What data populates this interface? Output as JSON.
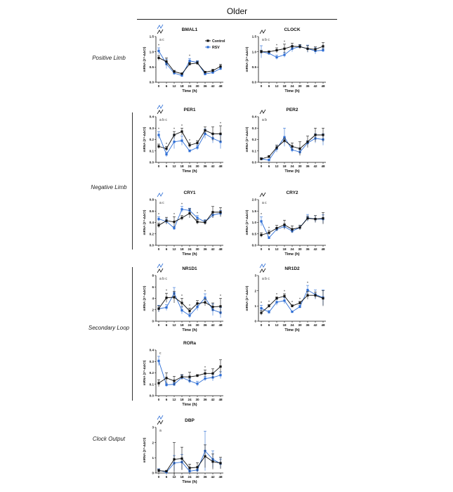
{
  "header": "Older",
  "groups": [
    "Positive Limb",
    "Negative Limb",
    "Secondary Loop",
    "Clock Output"
  ],
  "colors": {
    "control": "#111111",
    "rsv": "#2f6fd6"
  },
  "chart_data": [
    {
      "type": "line",
      "title": "BMAL1",
      "xlabel": "Time (h)",
      "ylabel": "mRNA (2^-ΔΔCt)",
      "x": [
        0,
        6,
        12,
        18,
        24,
        30,
        36,
        42,
        48
      ],
      "ylim": [
        0,
        1.5
      ],
      "yticks": [
        0.0,
        0.5,
        1.0,
        1.5
      ],
      "annotation": "a c",
      "waves": [
        "control",
        "rsv"
      ],
      "stars": [
        0,
        24
      ],
      "legend": "top-right",
      "series": [
        {
          "name": "Control",
          "values": [
            0.8,
            0.68,
            0.35,
            0.28,
            0.6,
            0.63,
            0.33,
            0.38,
            0.52
          ],
          "err": [
            0.08,
            0.12,
            0.04,
            0.02,
            0.05,
            0.06,
            0.03,
            0.05,
            0.07
          ]
        },
        {
          "name": "RSV",
          "values": [
            1.03,
            0.6,
            0.3,
            0.22,
            0.7,
            0.65,
            0.27,
            0.32,
            0.45
          ],
          "err": [
            0.1,
            0.15,
            0.05,
            0.03,
            0.08,
            0.06,
            0.03,
            0.04,
            0.05
          ]
        }
      ]
    },
    {
      "type": "line",
      "title": "CLOCK",
      "xlabel": "Time (h)",
      "ylabel": "mRNA (2^-ΔΔCt)",
      "x": [
        0,
        6,
        12,
        18,
        24,
        30,
        36,
        42,
        48
      ],
      "ylim": [
        0,
        1.5
      ],
      "yticks": [
        0.0,
        0.5,
        1.0,
        1.5
      ],
      "annotation": "a b c",
      "waves": [
        "control"
      ],
      "stars": [
        12,
        18
      ],
      "series": [
        {
          "values": [
            1.0,
            1.0,
            1.05,
            1.1,
            1.18,
            1.17,
            1.1,
            1.08,
            1.18
          ],
          "err": [
            0.05,
            0.03,
            0.08,
            0.15,
            0.1,
            0.07,
            0.1,
            0.08,
            0.12
          ]
        },
        {
          "values": [
            1.0,
            0.95,
            0.82,
            0.9,
            1.1,
            1.17,
            1.1,
            1.03,
            1.05
          ],
          "err": [
            0.2,
            0.05,
            0.07,
            0.08,
            0.1,
            0.05,
            0.12,
            0.1,
            0.06
          ]
        }
      ]
    },
    {
      "type": "line",
      "title": "PER1",
      "xlabel": "Time (h)",
      "ylabel": "mRNA (2^-ΔΔCt)",
      "x": [
        0,
        6,
        12,
        18,
        24,
        30,
        36,
        42,
        48
      ],
      "ylim": [
        0,
        0.4
      ],
      "yticks": [
        0.0,
        0.1,
        0.2,
        0.3,
        0.4
      ],
      "annotation": "a b c",
      "waves": [
        "control",
        "rsv"
      ],
      "stars": [
        0,
        6,
        12,
        18,
        24,
        48
      ],
      "series": [
        {
          "values": [
            0.14,
            0.12,
            0.24,
            0.27,
            0.15,
            0.17,
            0.28,
            0.25,
            0.25
          ],
          "err": [
            0.02,
            0.02,
            0.03,
            0.03,
            0.02,
            0.02,
            0.03,
            0.06,
            0.07
          ]
        },
        {
          "values": [
            0.24,
            0.07,
            0.18,
            0.19,
            0.1,
            0.13,
            0.25,
            0.21,
            0.18
          ],
          "err": [
            0.03,
            0.02,
            0.06,
            0.04,
            0.01,
            0.02,
            0.04,
            0.04,
            0.06
          ]
        }
      ]
    },
    {
      "type": "line",
      "title": "PER2",
      "xlabel": "Time (h)",
      "ylabel": "mRNA (2^-ΔΔCt)",
      "x": [
        0,
        6,
        12,
        18,
        24,
        30,
        36,
        42,
        48
      ],
      "ylim": [
        0,
        0.4
      ],
      "yticks": [
        0.0,
        0.1,
        0.2,
        0.3,
        0.4
      ],
      "annotation": "a b",
      "waves": [
        "control"
      ],
      "stars": [],
      "series": [
        {
          "values": [
            0.03,
            0.05,
            0.13,
            0.19,
            0.14,
            0.12,
            0.18,
            0.24,
            0.24
          ],
          "err": [
            0.01,
            0.01,
            0.02,
            0.02,
            0.03,
            0.06,
            0.05,
            0.06,
            0.06
          ]
        },
        {
          "values": [
            0.03,
            0.02,
            0.12,
            0.22,
            0.11,
            0.09,
            0.17,
            0.21,
            0.2
          ],
          "err": [
            0.01,
            0.01,
            0.03,
            0.08,
            0.02,
            0.02,
            0.02,
            0.04,
            0.05
          ]
        }
      ]
    },
    {
      "type": "line",
      "title": "CRY1",
      "xlabel": "Time (h)",
      "ylabel": "mRNA (2^-ΔΔCt)",
      "x": [
        0,
        6,
        12,
        18,
        24,
        30,
        36,
        42,
        48
      ],
      "ylim": [
        0,
        0.8
      ],
      "yticks": [
        0.0,
        0.2,
        0.4,
        0.6,
        0.8
      ],
      "annotation": "a c",
      "waves": [
        "rsv"
      ],
      "stars": [
        0,
        12,
        18,
        30
      ],
      "series": [
        {
          "values": [
            0.35,
            0.43,
            0.41,
            0.48,
            0.56,
            0.41,
            0.4,
            0.58,
            0.58
          ],
          "err": [
            0.04,
            0.06,
            0.09,
            0.04,
            0.08,
            0.04,
            0.04,
            0.1,
            0.08
          ]
        },
        {
          "values": [
            0.46,
            0.42,
            0.3,
            0.63,
            0.61,
            0.48,
            0.41,
            0.53,
            0.56
          ],
          "err": [
            0.04,
            0.04,
            0.03,
            0.05,
            0.04,
            0.04,
            0.04,
            0.05,
            0.05
          ]
        }
      ]
    },
    {
      "type": "line",
      "title": "CRY2",
      "xlabel": "Time (h)",
      "ylabel": "mRNA (2^-ΔΔCt)",
      "x": [
        0,
        6,
        12,
        18,
        24,
        30,
        36,
        42,
        48
      ],
      "ylim": [
        0,
        2.0
      ],
      "yticks": [
        0.0,
        0.5,
        1.0,
        1.5,
        2.0
      ],
      "annotation": "a c",
      "waves": [
        "control"
      ],
      "stars": [
        0,
        6
      ],
      "series": [
        {
          "values": [
            0.45,
            0.55,
            0.75,
            0.9,
            0.7,
            0.78,
            1.18,
            1.15,
            1.18
          ],
          "err": [
            0.1,
            0.1,
            0.12,
            0.2,
            0.15,
            0.1,
            0.1,
            0.15,
            0.25
          ]
        },
        {
          "values": [
            1.05,
            0.33,
            0.7,
            0.82,
            0.62,
            0.78,
            1.2,
            1.15,
            1.15
          ],
          "err": [
            0.2,
            0.05,
            0.08,
            0.1,
            0.08,
            0.1,
            0.15,
            0.15,
            0.18
          ]
        }
      ]
    },
    {
      "type": "line",
      "title": "NR1D1",
      "xlabel": "Time (h)",
      "ylabel": "mRNA (2^-ΔΔCt)",
      "x": [
        0,
        6,
        12,
        18,
        24,
        30,
        36,
        42,
        48
      ],
      "ylim": [
        0,
        8
      ],
      "yticks": [
        0,
        2,
        4,
        6,
        8
      ],
      "annotation": "a b c",
      "waves": [
        "control",
        "rsv"
      ],
      "stars": [
        6,
        18,
        24,
        36,
        48
      ],
      "series": [
        {
          "values": [
            2.2,
            4.1,
            4.2,
            3.2,
            1.8,
            3.1,
            3.3,
            2.5,
            2.6
          ],
          "err": [
            0.5,
            0.8,
            1.0,
            0.8,
            0.5,
            0.5,
            0.6,
            0.7,
            1.4
          ]
        },
        {
          "values": [
            2.2,
            2.4,
            4.9,
            1.9,
            1.0,
            2.5,
            4.1,
            2.0,
            1.5
          ],
          "err": [
            0.6,
            0.5,
            1.0,
            0.6,
            0.4,
            0.6,
            0.7,
            1.0,
            0.9
          ]
        }
      ]
    },
    {
      "type": "line",
      "title": "NR1D2",
      "xlabel": "Time (h)",
      "ylabel": "mRNA (2^-ΔΔCt)",
      "x": [
        0,
        6,
        12,
        18,
        24,
        30,
        36,
        42,
        48
      ],
      "ylim": [
        0,
        3
      ],
      "yticks": [
        0,
        1,
        2,
        3
      ],
      "annotation": "a b c",
      "waves": [
        "control",
        "rsv"
      ],
      "stars": [
        0,
        6,
        12,
        18,
        24,
        30,
        36
      ],
      "series": [
        {
          "values": [
            0.55,
            1.0,
            1.5,
            1.65,
            1.0,
            1.2,
            1.7,
            1.7,
            1.5
          ],
          "err": [
            0.15,
            0.1,
            0.1,
            0.15,
            0.08,
            0.1,
            0.25,
            0.2,
            0.5
          ]
        },
        {
          "values": [
            0.85,
            0.6,
            1.25,
            1.35,
            0.62,
            0.95,
            2.05,
            1.75,
            1.55
          ],
          "err": [
            0.2,
            0.1,
            0.2,
            0.2,
            0.05,
            0.1,
            0.3,
            0.3,
            0.5
          ]
        }
      ]
    },
    {
      "type": "line",
      "title": "RORa",
      "xlabel": "Time (h)",
      "ylabel": "mRNA (2^-ΔΔCt)",
      "x": [
        0,
        6,
        12,
        18,
        24,
        30,
        36,
        42,
        48
      ],
      "ylim": [
        0,
        0.4
      ],
      "yticks": [
        0.0,
        0.1,
        0.2,
        0.3,
        0.4
      ],
      "annotation": "c",
      "waves": [],
      "stars": [
        36
      ],
      "series": [
        {
          "values": [
            0.11,
            0.155,
            0.13,
            0.165,
            0.165,
            0.175,
            0.195,
            0.195,
            0.255
          ],
          "err": [
            0.03,
            0.045,
            0.04,
            0.02,
            0.04,
            0.01,
            0.03,
            0.04,
            0.06
          ]
        },
        {
          "values": [
            0.305,
            0.095,
            0.1,
            0.16,
            0.13,
            0.105,
            0.15,
            0.16,
            0.18
          ],
          "err": [
            0.04,
            0.015,
            0.015,
            0.02,
            0.02,
            0.02,
            0.02,
            0.03,
            0.03
          ]
        }
      ]
    },
    {
      "type": "line",
      "title": "DBP",
      "xlabel": "Time (h)",
      "ylabel": "mRNA (2^-ΔΔCt)",
      "x": [
        0,
        6,
        12,
        18,
        24,
        30,
        36,
        42,
        48
      ],
      "ylim": [
        0,
        3
      ],
      "yticks": [
        0,
        1,
        2,
        3
      ],
      "annotation": "a",
      "waves": [
        "control",
        "rsv"
      ],
      "stars": [],
      "series": [
        {
          "values": [
            0.15,
            0.12,
            0.9,
            0.95,
            0.33,
            0.38,
            1.1,
            0.75,
            0.65
          ],
          "err": [
            0.1,
            0.05,
            1.1,
            0.75,
            0.25,
            0.3,
            0.75,
            0.5,
            0.38
          ]
        },
        {
          "values": [
            0.18,
            0.05,
            0.65,
            0.72,
            0.12,
            0.2,
            1.45,
            0.9,
            0.62
          ],
          "err": [
            0.1,
            0.05,
            0.5,
            0.5,
            0.1,
            0.15,
            1.3,
            0.55,
            0.3
          ]
        }
      ]
    }
  ]
}
